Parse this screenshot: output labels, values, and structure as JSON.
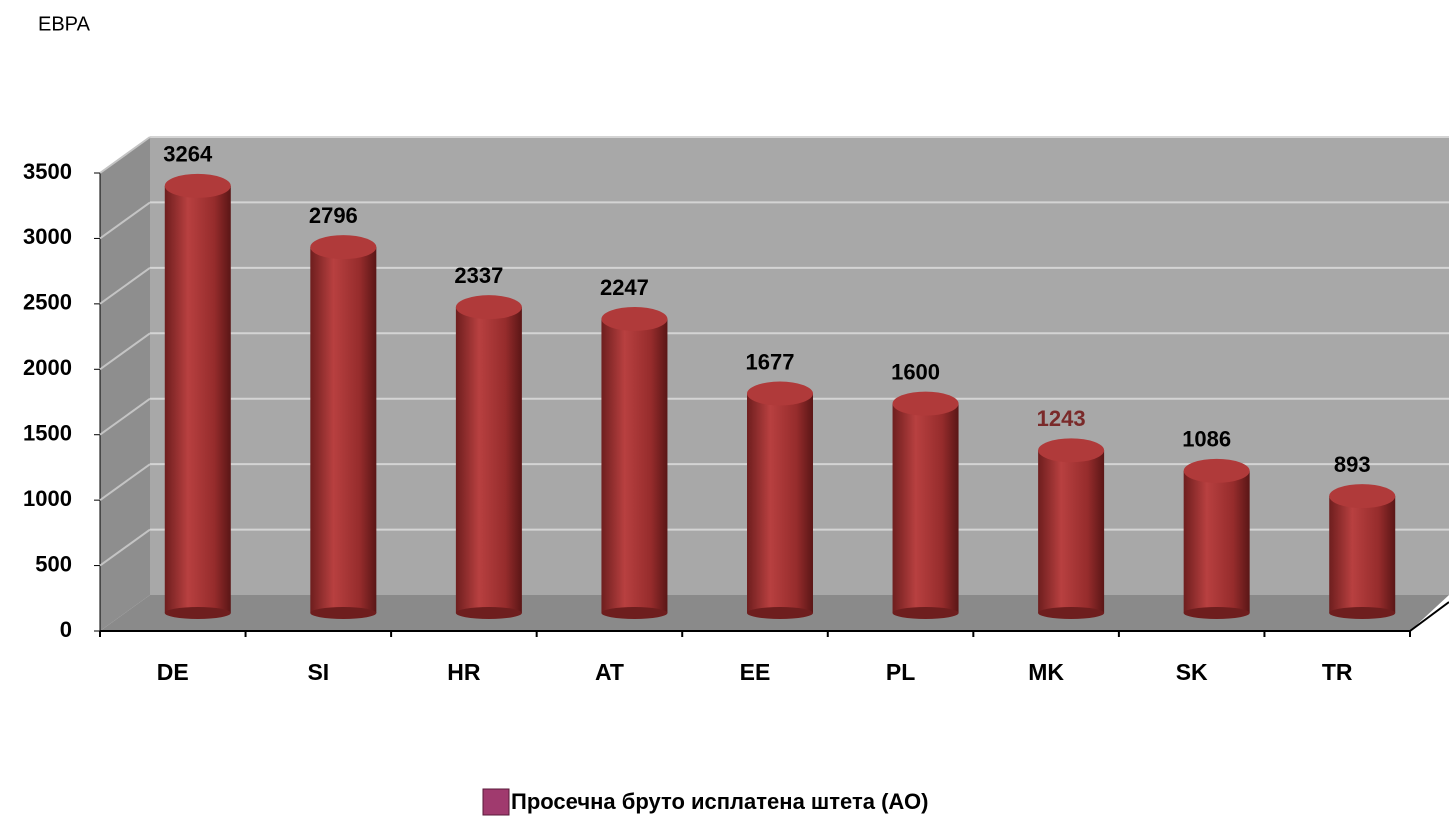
{
  "chart_data": {
    "type": "bar3d",
    "title": "ЕВРА",
    "categories": [
      "DE",
      "SI",
      "HR",
      "AT",
      "EE",
      "PL",
      "MK",
      "SK",
      "TR"
    ],
    "series": [
      {
        "name": "Просечна бруто исплатена штета (АО)",
        "color": "#9e3030",
        "values": [
          3264,
          2796,
          2337,
          2247,
          1677,
          1600,
          1243,
          1086,
          893
        ]
      }
    ],
    "value_label_colors": [
      "#000000",
      "#000000",
      "#000000",
      "#000000",
      "#000000",
      "#000000",
      "#7a2a2a",
      "#000000",
      "#000000"
    ],
    "legend_color": "#a03a6e",
    "ylim": [
      0,
      3500
    ],
    "yticks": [
      0,
      500,
      1000,
      1500,
      2000,
      2500,
      3000,
      3500
    ],
    "grid": true
  }
}
